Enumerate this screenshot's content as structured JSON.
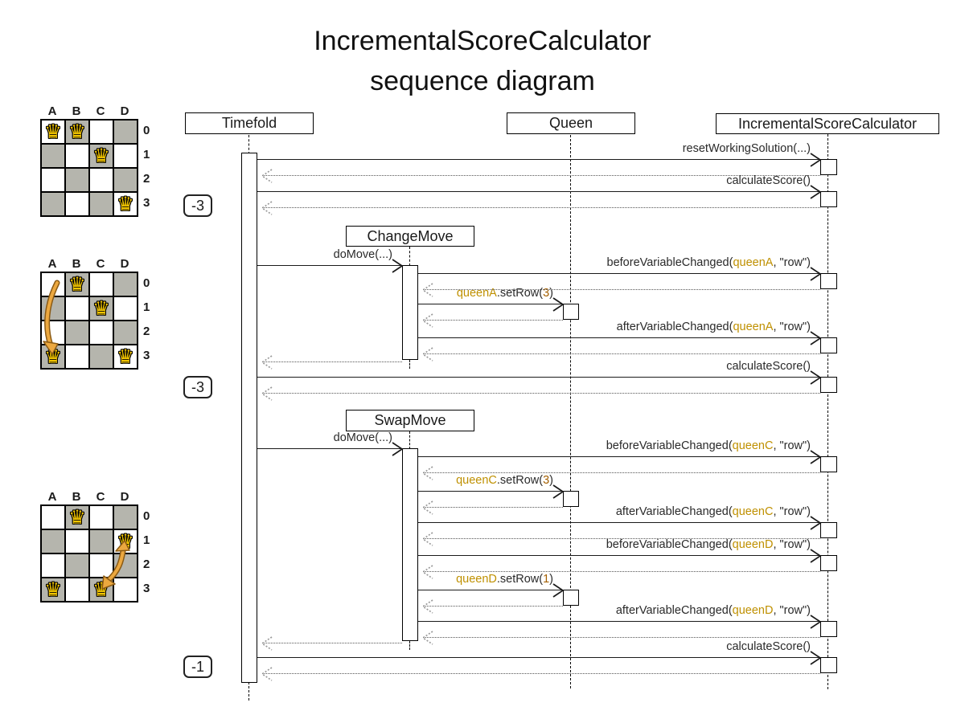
{
  "title": {
    "line1": "IncrementalScoreCalculator",
    "line2": "sequence diagram"
  },
  "lifelines": {
    "timefold": "Timefold",
    "queen": "Queen",
    "calculator": "IncrementalScoreCalculator"
  },
  "move_boxes": {
    "change_move": "ChangeMove",
    "swap_move": "SwapMove"
  },
  "scores": {
    "initial": "-3",
    "after_change_move": "-3",
    "after_swap_move": "-1"
  },
  "colors": {
    "queen_ref": "#bf9000",
    "value_literal": "#a45f00",
    "board_dark_cell": "#b5b5ad",
    "move_arrow": "#eca83f",
    "move_arrow_outline": "#8a5a14",
    "queen_piece": "#f2c500"
  },
  "piece_glyph": "♛",
  "messages": {
    "reset_working_solution": {
      "segments": [
        {
          "t": "resetWorkingSolution(...)",
          "k": "plain"
        }
      ]
    },
    "calculate_score": {
      "segments": [
        {
          "t": "calculateScore()",
          "k": "plain"
        }
      ]
    },
    "do_move": {
      "segments": [
        {
          "t": "doMove(...)",
          "k": "plain"
        }
      ]
    },
    "before_queen_a": {
      "segments": [
        {
          "t": "beforeVariableChanged(",
          "k": "plain"
        },
        {
          "t": "queenA",
          "k": "queen"
        },
        {
          "t": ", \"row\")",
          "k": "plain"
        }
      ]
    },
    "set_row_a": {
      "segments": [
        {
          "t": "queenA",
          "k": "queen"
        },
        {
          "t": ".setRow(",
          "k": "plain"
        },
        {
          "t": "3",
          "k": "num"
        },
        {
          "t": ")",
          "k": "plain"
        }
      ]
    },
    "after_queen_a": {
      "segments": [
        {
          "t": "afterVariableChanged(",
          "k": "plain"
        },
        {
          "t": "queenA",
          "k": "queen"
        },
        {
          "t": ", \"row\")",
          "k": "plain"
        }
      ]
    },
    "before_queen_c": {
      "segments": [
        {
          "t": "beforeVariableChanged(",
          "k": "plain"
        },
        {
          "t": "queenC",
          "k": "queen"
        },
        {
          "t": ", \"row\")",
          "k": "plain"
        }
      ]
    },
    "set_row_c": {
      "segments": [
        {
          "t": "queenC",
          "k": "queen"
        },
        {
          "t": ".setRow(",
          "k": "plain"
        },
        {
          "t": "3",
          "k": "num"
        },
        {
          "t": ")",
          "k": "plain"
        }
      ]
    },
    "after_queen_c": {
      "segments": [
        {
          "t": "afterVariableChanged(",
          "k": "plain"
        },
        {
          "t": "queenC",
          "k": "queen"
        },
        {
          "t": ", \"row\")",
          "k": "plain"
        }
      ]
    },
    "before_queen_d": {
      "segments": [
        {
          "t": "beforeVariableChanged(",
          "k": "plain"
        },
        {
          "t": "queenD",
          "k": "queen"
        },
        {
          "t": ", \"row\")",
          "k": "plain"
        }
      ]
    },
    "set_row_d": {
      "segments": [
        {
          "t": "queenD",
          "k": "queen"
        },
        {
          "t": ".setRow(",
          "k": "plain"
        },
        {
          "t": "1",
          "k": "num"
        },
        {
          "t": ")",
          "k": "plain"
        }
      ]
    },
    "after_queen_d": {
      "segments": [
        {
          "t": "afterVariableChanged(",
          "k": "plain"
        },
        {
          "t": "queenD",
          "k": "queen"
        },
        {
          "t": ", \"row\")",
          "k": "plain"
        }
      ]
    }
  },
  "boards": [
    {
      "columns": [
        "A",
        "B",
        "C",
        "D"
      ],
      "rows": [
        "0",
        "1",
        "2",
        "3"
      ],
      "queens": [
        "A0",
        "B0",
        "C1",
        "D3"
      ],
      "move_arrow": null
    },
    {
      "columns": [
        "A",
        "B",
        "C",
        "D"
      ],
      "rows": [
        "0",
        "1",
        "2",
        "3"
      ],
      "queens": [
        "B0",
        "C1",
        "A3",
        "D3"
      ],
      "move_arrow": {
        "from": "A0",
        "to": "A3",
        "bidirectional": false
      }
    },
    {
      "columns": [
        "A",
        "B",
        "C",
        "D"
      ],
      "rows": [
        "0",
        "1",
        "2",
        "3"
      ],
      "queens": [
        "B0",
        "D1",
        "A3",
        "C3"
      ],
      "move_arrow": {
        "from": "D1",
        "to": "C3",
        "bidirectional": true
      }
    }
  ]
}
